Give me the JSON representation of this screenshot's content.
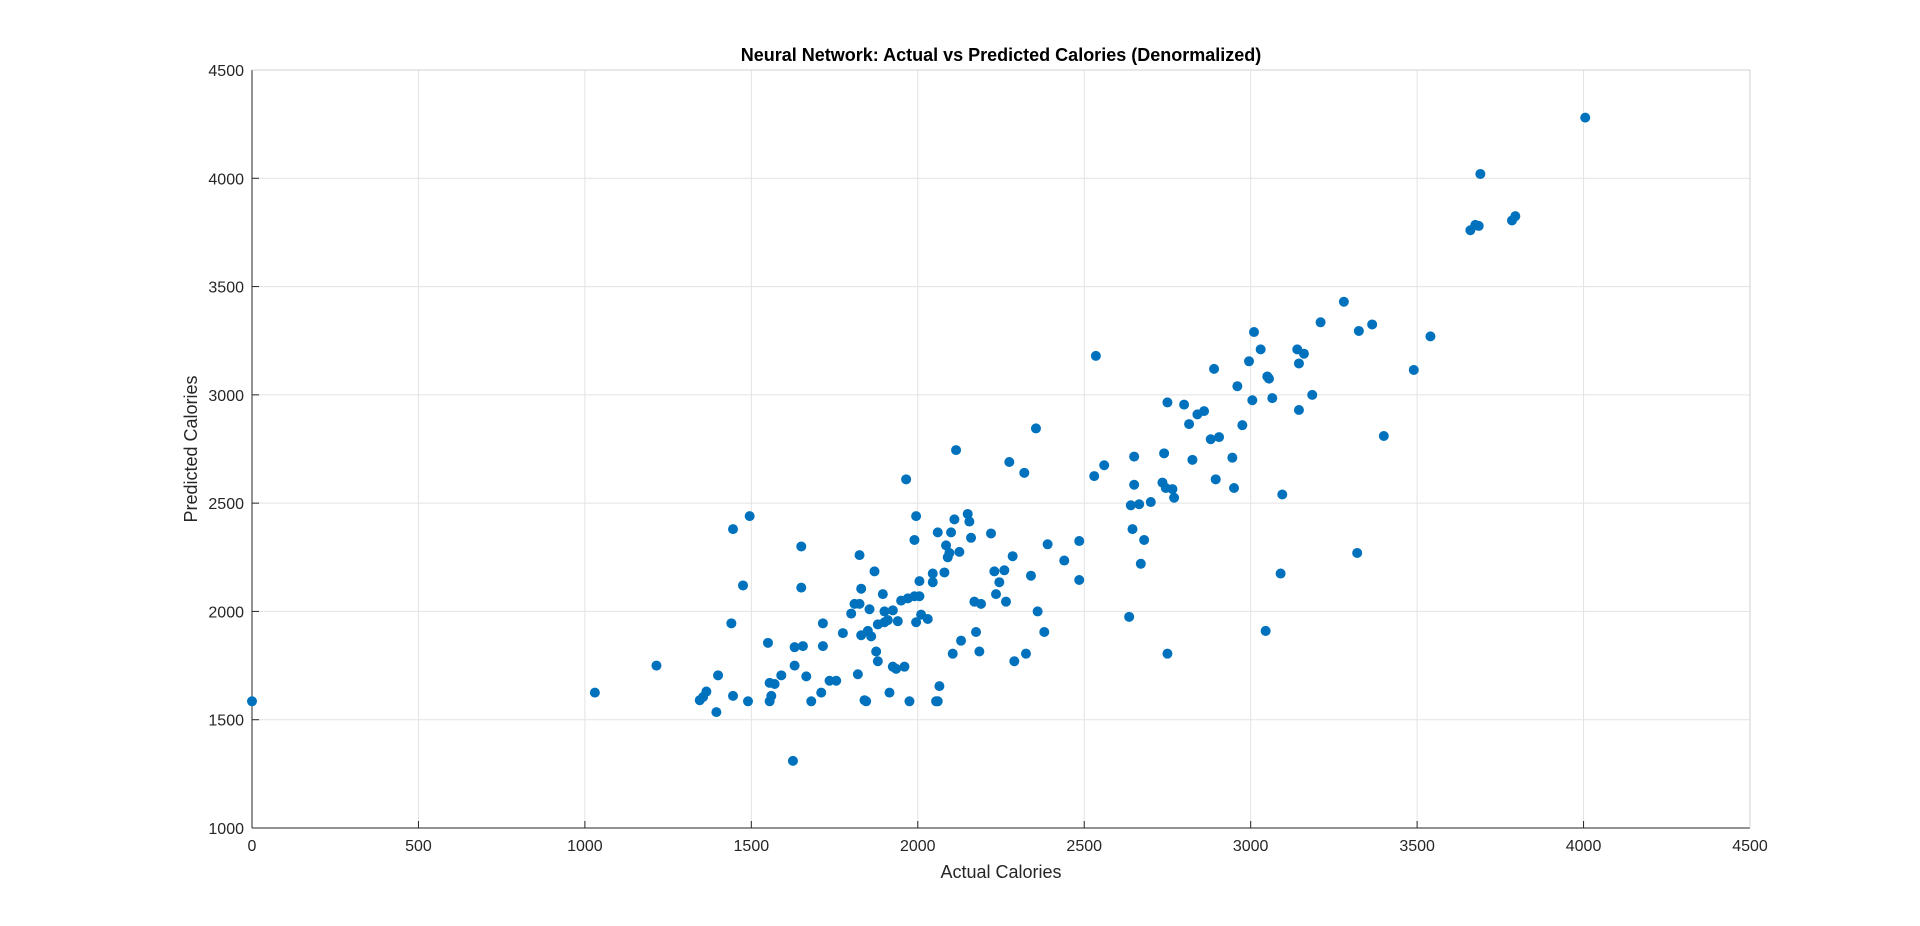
{
  "chart_data": {
    "type": "scatter",
    "title": "Neural Network: Actual vs Predicted Calories (Denormalized)",
    "xlabel": "Actual Calories",
    "ylabel": "Predicted Calories",
    "xlim": [
      0,
      4500
    ],
    "ylim": [
      1000,
      4500
    ],
    "x_ticks": [
      "0",
      "500",
      "1000",
      "1500",
      "2000",
      "2500",
      "3000",
      "3500",
      "4000",
      "4500"
    ],
    "y_ticks": [
      "1000",
      "1500",
      "2000",
      "2500",
      "3000",
      "3500",
      "4000",
      "4500"
    ],
    "grid": true,
    "box": true,
    "marker_color": "#0072BD",
    "points": [
      [
        0,
        1585
      ],
      [
        1030,
        1625
      ],
      [
        1215,
        1750
      ],
      [
        1345,
        1590
      ],
      [
        1355,
        1605
      ],
      [
        1365,
        1630
      ],
      [
        1395,
        1535
      ],
      [
        1400,
        1705
      ],
      [
        1440,
        1945
      ],
      [
        1445,
        1610
      ],
      [
        1445,
        2380
      ],
      [
        1475,
        2120
      ],
      [
        1490,
        1585
      ],
      [
        1495,
        2440
      ],
      [
        1550,
        1855
      ],
      [
        1555,
        1670
      ],
      [
        1555,
        1585
      ],
      [
        1560,
        1610
      ],
      [
        1570,
        1665
      ],
      [
        1590,
        1705
      ],
      [
        1625,
        1310
      ],
      [
        1630,
        1835
      ],
      [
        1630,
        1750
      ],
      [
        1650,
        2300
      ],
      [
        1650,
        2110
      ],
      [
        1655,
        1840
      ],
      [
        1665,
        1700
      ],
      [
        1680,
        1585
      ],
      [
        1710,
        1625
      ],
      [
        1715,
        1945
      ],
      [
        1715,
        1840
      ],
      [
        1735,
        1680
      ],
      [
        1755,
        1680
      ],
      [
        1775,
        1900
      ],
      [
        1800,
        1990
      ],
      [
        1810,
        2035
      ],
      [
        1820,
        1710
      ],
      [
        1825,
        2260
      ],
      [
        1825,
        2035
      ],
      [
        1830,
        1890
      ],
      [
        1830,
        2105
      ],
      [
        1840,
        1590
      ],
      [
        1845,
        1585
      ],
      [
        1850,
        1910
      ],
      [
        1855,
        2010
      ],
      [
        1860,
        1885
      ],
      [
        1870,
        2185
      ],
      [
        1875,
        1815
      ],
      [
        1880,
        1770
      ],
      [
        1880,
        1940
      ],
      [
        1895,
        2080
      ],
      [
        1900,
        1950
      ],
      [
        1900,
        2000
      ],
      [
        1910,
        1960
      ],
      [
        1915,
        1625
      ],
      [
        1925,
        2005
      ],
      [
        1925,
        1745
      ],
      [
        1935,
        1735
      ],
      [
        1940,
        1955
      ],
      [
        1950,
        2050
      ],
      [
        1960,
        1745
      ],
      [
        1965,
        2610
      ],
      [
        1970,
        2060
      ],
      [
        1975,
        1585
      ],
      [
        1990,
        2070
      ],
      [
        1990,
        2330
      ],
      [
        1995,
        1950
      ],
      [
        1995,
        2440
      ],
      [
        2005,
        2140
      ],
      [
        2005,
        2070
      ],
      [
        2010,
        1985
      ],
      [
        2030,
        1965
      ],
      [
        2045,
        2175
      ],
      [
        2045,
        2135
      ],
      [
        2055,
        1585
      ],
      [
        2060,
        2365
      ],
      [
        2060,
        1585
      ],
      [
        2065,
        1655
      ],
      [
        2080,
        2180
      ],
      [
        2085,
        2305
      ],
      [
        2090,
        2250
      ],
      [
        2095,
        2270
      ],
      [
        2100,
        2365
      ],
      [
        2105,
        1805
      ],
      [
        2110,
        2425
      ],
      [
        2115,
        2745
      ],
      [
        2125,
        2275
      ],
      [
        2130,
        1865
      ],
      [
        2150,
        2450
      ],
      [
        2155,
        2415
      ],
      [
        2160,
        2340
      ],
      [
        2170,
        2045
      ],
      [
        2175,
        1905
      ],
      [
        2185,
        1815
      ],
      [
        2190,
        2035
      ],
      [
        2220,
        2360
      ],
      [
        2230,
        2185
      ],
      [
        2235,
        2080
      ],
      [
        2245,
        2135
      ],
      [
        2260,
        2190
      ],
      [
        2265,
        2045
      ],
      [
        2275,
        2690
      ],
      [
        2285,
        2255
      ],
      [
        2290,
        1770
      ],
      [
        2320,
        2640
      ],
      [
        2325,
        1805
      ],
      [
        2340,
        2165
      ],
      [
        2355,
        2845
      ],
      [
        2360,
        2000
      ],
      [
        2380,
        1905
      ],
      [
        2390,
        2310
      ],
      [
        2440,
        2235
      ],
      [
        2485,
        2325
      ],
      [
        2485,
        2145
      ],
      [
        2530,
        2625
      ],
      [
        2535,
        3180
      ],
      [
        2560,
        2675
      ],
      [
        2635,
        1975
      ],
      [
        2640,
        2490
      ],
      [
        2645,
        2380
      ],
      [
        2650,
        2715
      ],
      [
        2650,
        2585
      ],
      [
        2665,
        2495
      ],
      [
        2670,
        2220
      ],
      [
        2680,
        2330
      ],
      [
        2700,
        2505
      ],
      [
        2735,
        2595
      ],
      [
        2740,
        2730
      ],
      [
        2745,
        2570
      ],
      [
        2750,
        2965
      ],
      [
        2750,
        1805
      ],
      [
        2765,
        2565
      ],
      [
        2770,
        2525
      ],
      [
        2800,
        2955
      ],
      [
        2815,
        2865
      ],
      [
        2825,
        2700
      ],
      [
        2840,
        2910
      ],
      [
        2860,
        2925
      ],
      [
        2880,
        2795
      ],
      [
        2890,
        3120
      ],
      [
        2895,
        2610
      ],
      [
        2905,
        2805
      ],
      [
        2945,
        2710
      ],
      [
        2950,
        2570
      ],
      [
        2960,
        3040
      ],
      [
        2975,
        2860
      ],
      [
        2995,
        3155
      ],
      [
        3005,
        2975
      ],
      [
        3010,
        3290
      ],
      [
        3030,
        3210
      ],
      [
        3045,
        1910
      ],
      [
        3050,
        3085
      ],
      [
        3055,
        3075
      ],
      [
        3065,
        2985
      ],
      [
        3090,
        2175
      ],
      [
        3095,
        2540
      ],
      [
        3140,
        3210
      ],
      [
        3145,
        3145
      ],
      [
        3145,
        2930
      ],
      [
        3160,
        3190
      ],
      [
        3185,
        3000
      ],
      [
        3210,
        3335
      ],
      [
        3280,
        3430
      ],
      [
        3320,
        2270
      ],
      [
        3325,
        3295
      ],
      [
        3365,
        3325
      ],
      [
        3400,
        2810
      ],
      [
        3490,
        3115
      ],
      [
        3540,
        3270
      ],
      [
        3660,
        3760
      ],
      [
        3675,
        3785
      ],
      [
        3685,
        3780
      ],
      [
        3690,
        4020
      ],
      [
        3785,
        3805
      ],
      [
        3795,
        3825
      ],
      [
        4005,
        4280
      ]
    ]
  }
}
